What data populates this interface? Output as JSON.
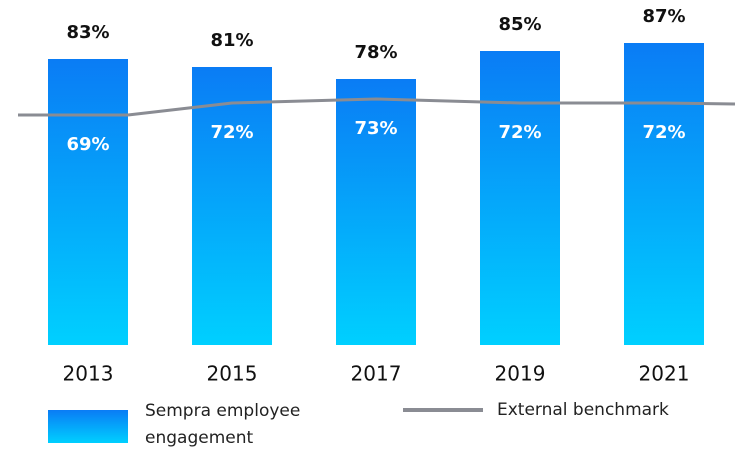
{
  "chart_data": {
    "type": "bar",
    "categories": [
      "2013",
      "2015",
      "2017",
      "2019",
      "2021"
    ],
    "series": [
      {
        "name": "Sempra employee engagement",
        "type": "bar",
        "color": "#0a7cf5",
        "values": [
          83,
          81,
          78,
          85,
          87
        ],
        "value_labels": [
          "83%",
          "81%",
          "78%",
          "85%",
          "87%"
        ]
      },
      {
        "name": "External benchmark",
        "type": "line",
        "color": "#8a8c93",
        "values": [
          69,
          72,
          73,
          72,
          72
        ],
        "value_labels": [
          "69%",
          "72%",
          "73%",
          "72%",
          "72%"
        ]
      }
    ],
    "ylim": [
      12,
      90
    ]
  }
}
